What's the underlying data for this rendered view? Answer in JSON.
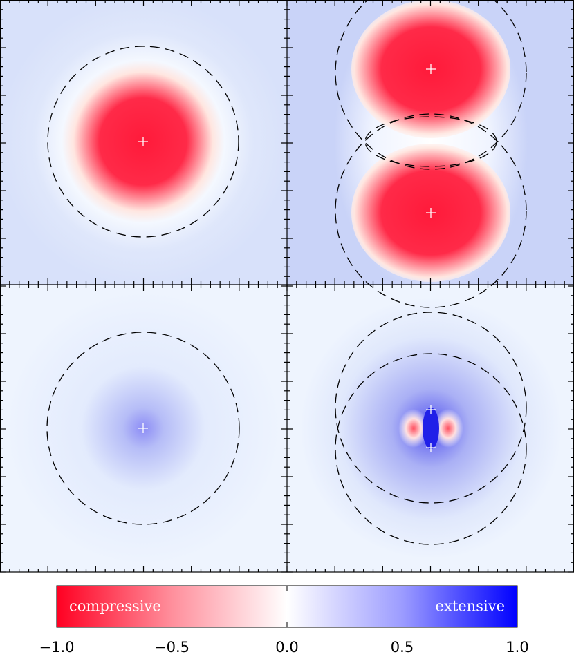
{
  "chart_data": {
    "type": "colorbar",
    "colormap": [
      "#ff0022",
      "#ff8f9c",
      "#ffffff",
      "#9c9cff",
      "#0000ff"
    ],
    "clim": [
      -1,
      1
    ],
    "ticks": [
      {
        "value": -1,
        "label": "−1.0"
      },
      {
        "value": -0.5,
        "label": "−0.5"
      },
      {
        "value": 0,
        "label": "0.0"
      },
      {
        "value": 0.5,
        "label": "0.5"
      },
      {
        "value": 1,
        "label": "1.0"
      }
    ],
    "left_label": "compressive",
    "right_label": "extensive"
  }
}
